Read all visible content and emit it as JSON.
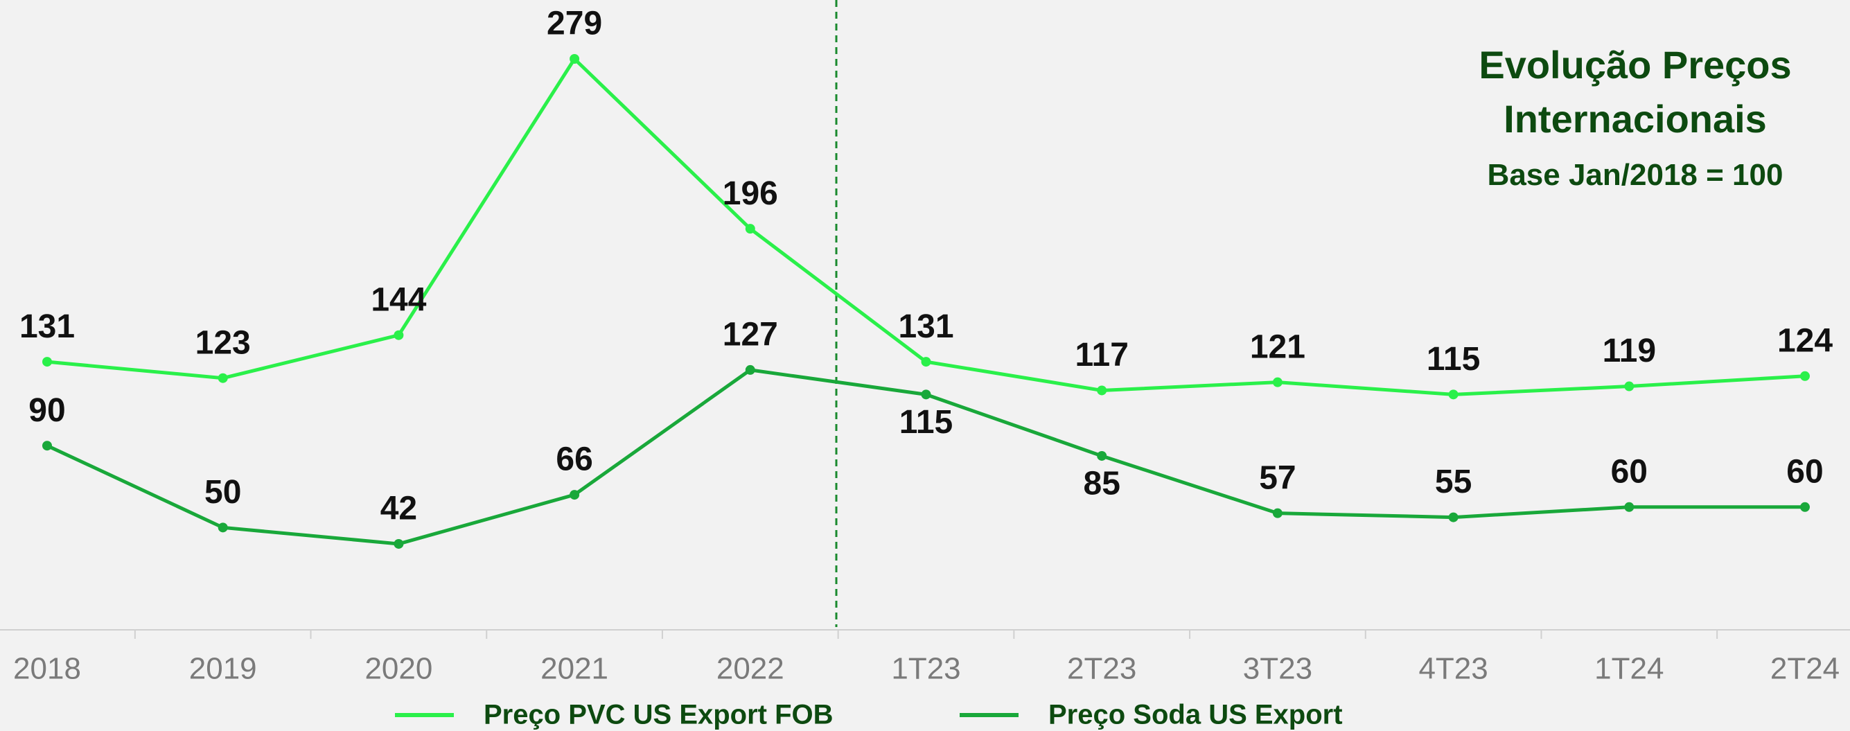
{
  "chart_data": {
    "type": "line",
    "title": "Evolução Preços Internacionais",
    "subtitle": "Base Jan/2018 = 100",
    "categories": [
      "2018",
      "2019",
      "2020",
      "2021",
      "2022",
      "1T23",
      "2T23",
      "3T23",
      "4T23",
      "1T24",
      "2T24"
    ],
    "series": [
      {
        "name": "Preço PVC US Export FOB",
        "color": "#2af04a",
        "values": [
          131,
          123,
          144,
          279,
          196,
          131,
          117,
          121,
          115,
          119,
          124
        ]
      },
      {
        "name": "Preço Soda US Export",
        "color": "#19a83a",
        "values": [
          90,
          50,
          42,
          66,
          127,
          115,
          85,
          57,
          55,
          60,
          60
        ]
      }
    ]
  }
}
